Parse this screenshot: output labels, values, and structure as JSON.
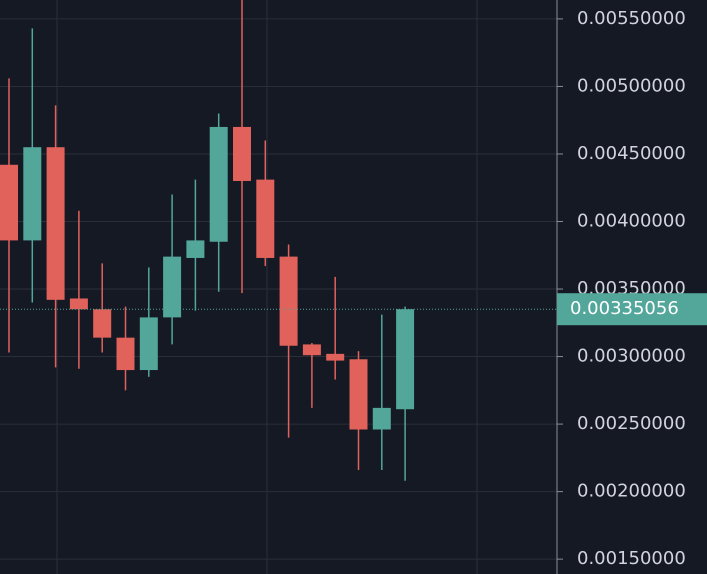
{
  "chart_data": {
    "type": "candlestick",
    "open": [
      0.00442,
      0.00386,
      0.00455,
      0.00343,
      0.00335,
      0.00314,
      0.0029,
      0.00329,
      0.00373,
      0.00385,
      0.0047,
      0.00431,
      0.00374,
      0.00309,
      0.00302,
      0.00298,
      0.00246,
      0.00261
    ],
    "high": [
      0.00506,
      0.00543,
      0.00486,
      0.00408,
      0.00369,
      0.00337,
      0.00366,
      0.0042,
      0.00431,
      0.0048,
      0.0057,
      0.0046,
      0.00383,
      0.0031,
      0.00359,
      0.00304,
      0.00331,
      0.00337
    ],
    "low": [
      0.00303,
      0.0034,
      0.00292,
      0.00291,
      0.00303,
      0.00275,
      0.00285,
      0.00309,
      0.00334,
      0.00348,
      0.00347,
      0.00367,
      0.0024,
      0.00262,
      0.00283,
      0.00216,
      0.00216,
      0.00208
    ],
    "close": [
      0.00386,
      0.00455,
      0.00342,
      0.00335,
      0.00314,
      0.0029,
      0.00329,
      0.00374,
      0.00386,
      0.0047,
      0.0043,
      0.00373,
      0.00308,
      0.00301,
      0.00297,
      0.00246,
      0.00262,
      0.00335056
    ],
    "up_color": "#53a69a",
    "down_color": "#e0625a",
    "last_price": 0.00335056,
    "ylim": [
      0.00139,
      0.00564
    ],
    "yticks": [
      {
        "value": 0.0055,
        "label": "0.00550000"
      },
      {
        "value": 0.005,
        "label": "0.00500000"
      },
      {
        "value": 0.0045,
        "label": "0.00450000"
      },
      {
        "value": 0.004,
        "label": "0.00400000"
      },
      {
        "value": 0.0035,
        "label": "0.00350000"
      },
      {
        "value": 0.003,
        "label": "0.00300000"
      },
      {
        "value": 0.0025,
        "label": "0.00250000"
      },
      {
        "value": 0.002,
        "label": "0.00200000"
      },
      {
        "value": 0.0015,
        "label": "0.00150000"
      }
    ],
    "grid": true
  }
}
